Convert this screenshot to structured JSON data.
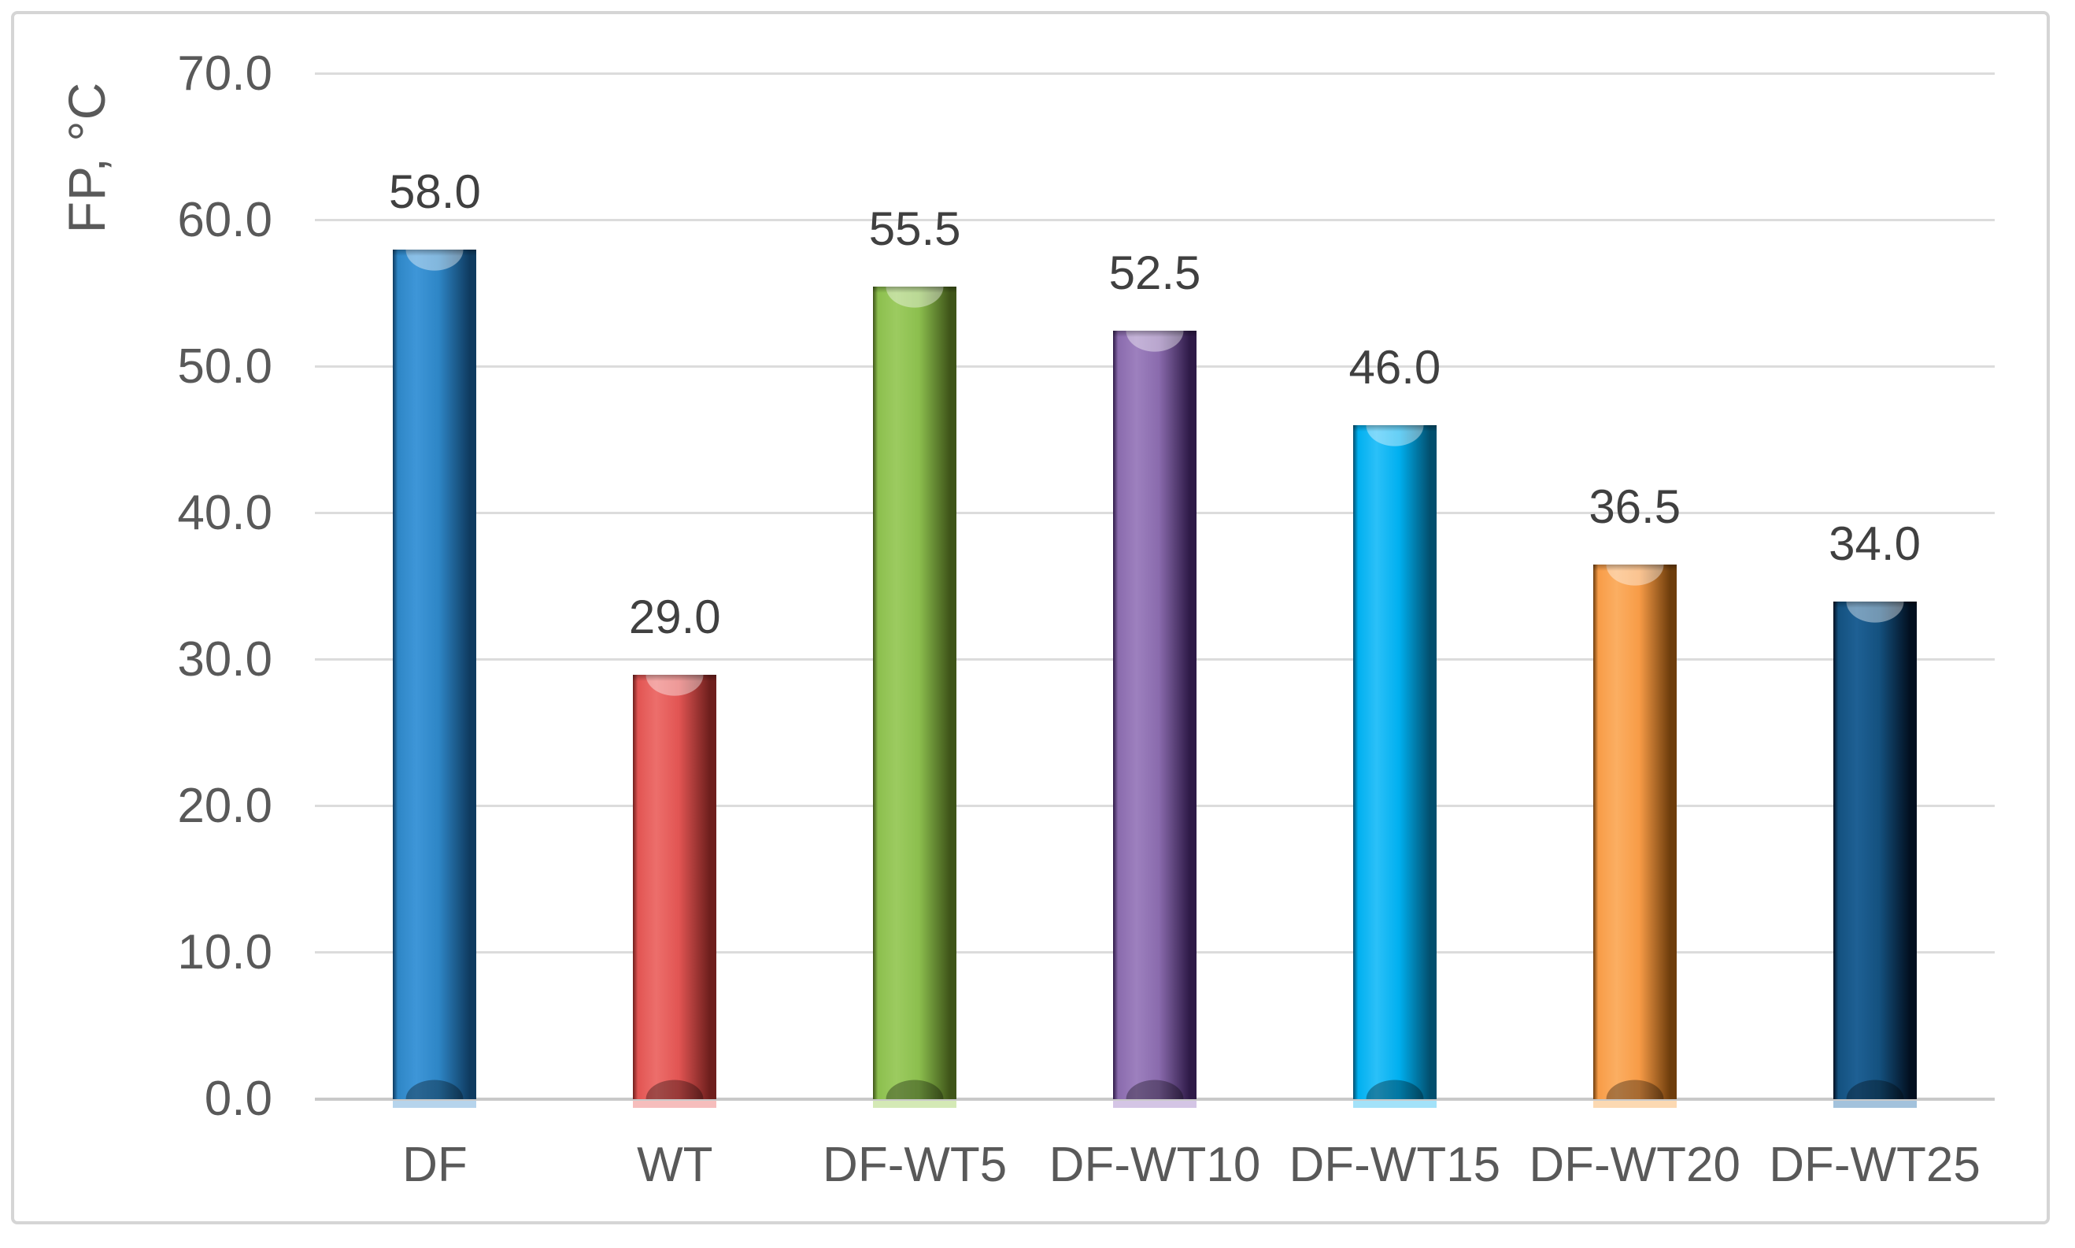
{
  "chart_data": {
    "type": "bar",
    "title": "",
    "xlabel": "",
    "ylabel": "FP, °C",
    "categories": [
      "DF",
      "WT",
      "DF-WT5",
      "DF-WT10",
      "DF-WT15",
      "DF-WT20",
      "DF-WT25"
    ],
    "values": [
      58.0,
      29.0,
      55.5,
      52.5,
      46.0,
      36.5,
      34.0
    ],
    "data_labels": [
      "58.0",
      "29.0",
      "55.5",
      "52.5",
      "46.0",
      "36.5",
      "34.0"
    ],
    "ylim": [
      0,
      70
    ],
    "ytick_step": 10,
    "ytick_labels": [
      "0.0",
      "10.0",
      "20.0",
      "30.0",
      "40.0",
      "50.0",
      "60.0",
      "70.0"
    ],
    "grid": true,
    "legend": "none",
    "bar_style": "3d-cylinder-bevel",
    "background_color": "#ffffff",
    "frame_border_color": "#d5d5d5",
    "gridline_color": "#dcdcdc",
    "tick_label_color": "#595959",
    "data_label_color": "#404040",
    "bar_colors": [
      {
        "name": "blue",
        "light": "#3e96d8",
        "mid": "#2e86c6",
        "dark": "#0f3b60",
        "reflection": "#a9cce9"
      },
      {
        "name": "red",
        "light": "#ec6e6b",
        "mid": "#e25553",
        "dark": "#6e1f1d",
        "reflection": "#f4b1b0"
      },
      {
        "name": "green",
        "light": "#9ccb60",
        "mid": "#8cbf4e",
        "dark": "#3f5519",
        "reflection": "#cce5a8"
      },
      {
        "name": "purple",
        "light": "#9d80be",
        "mid": "#8a6bad",
        "dark": "#2e1a47",
        "reflection": "#cdbbe0"
      },
      {
        "name": "cyan",
        "light": "#2bc0f8",
        "mid": "#00b0f0",
        "dark": "#024f6e",
        "reflection": "#93ddf8"
      },
      {
        "name": "orange",
        "light": "#fbae62",
        "mid": "#f89c47",
        "dark": "#6e3d0c",
        "reflection": "#fcd2a4"
      },
      {
        "name": "navy",
        "light": "#1e6094",
        "mid": "#14517f",
        "dark": "#020f1f",
        "reflection": "#93b7d6"
      }
    ]
  }
}
